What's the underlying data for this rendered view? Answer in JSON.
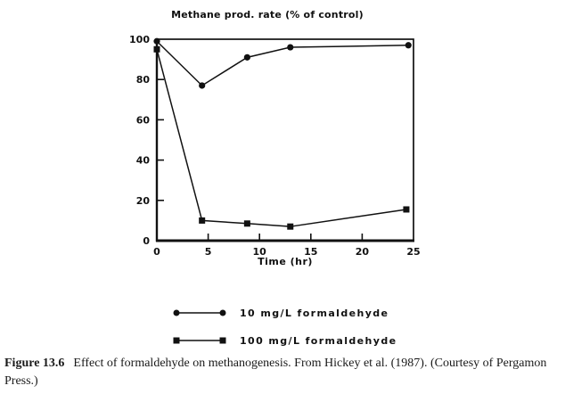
{
  "page": {
    "background": "#ffffff",
    "ink": "#111111"
  },
  "chart_data": {
    "type": "line",
    "title": "Methane prod. rate (% of control)",
    "xlabel": "Time (hr)",
    "ylabel": "",
    "xlim": [
      0,
      25
    ],
    "ylim": [
      0,
      100
    ],
    "xticks": [
      0,
      5,
      10,
      15,
      20,
      25
    ],
    "yticks": [
      0,
      20,
      40,
      60,
      80,
      100
    ],
    "grid": false,
    "legend_position": "below-chart",
    "series": [
      {
        "name": "10 mg/L formaldehyde",
        "marker": "circle",
        "color": "#111111",
        "x": [
          0,
          4.4,
          8.8,
          13,
          24.5
        ],
        "y": [
          99,
          77,
          91,
          96,
          97
        ]
      },
      {
        "name": "100 mg/L formaldehyde",
        "marker": "square",
        "color": "#111111",
        "x": [
          0,
          4.4,
          8.8,
          13,
          24.3
        ],
        "y": [
          95,
          10,
          8.5,
          7,
          15.5
        ]
      }
    ]
  },
  "caption": {
    "label": "Figure 13.6",
    "text": "Effect of formaldehyde on methanogenesis. From Hickey et al. (1987). (Courtesy of Pergamon Press.)"
  }
}
